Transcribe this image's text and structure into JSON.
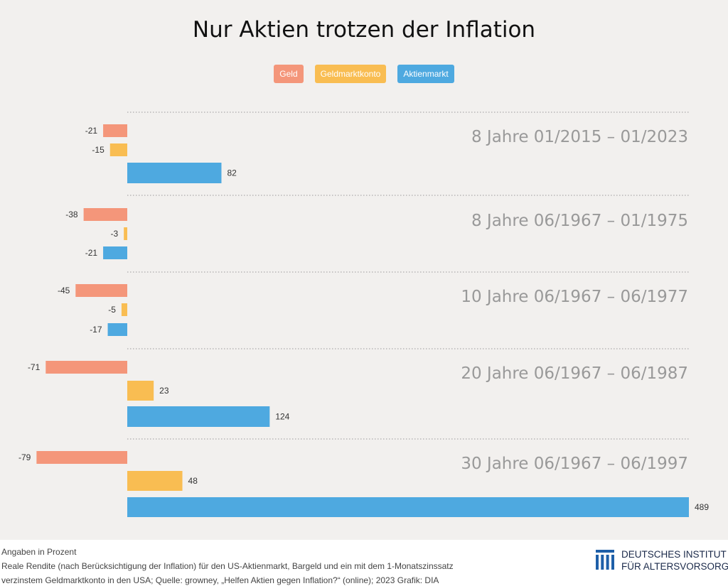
{
  "title": "Nur Aktien trotzen der Inflation",
  "legend": [
    {
      "label": "Geld",
      "color": "#f4967a"
    },
    {
      "label": "Geldmarktkonto",
      "color": "#f9bd52"
    },
    {
      "label": "Aktienmarkt",
      "color": "#4ea9e0"
    }
  ],
  "chart_data": {
    "type": "bar",
    "orientation": "horizontal",
    "unit": "Prozent",
    "series": [
      {
        "name": "Geld",
        "color": "#f4967a",
        "values": [
          -21,
          -38,
          -45,
          -71,
          -79
        ]
      },
      {
        "name": "Geldmarktkonto",
        "color": "#f9bd52",
        "values": [
          -15,
          -3,
          -5,
          23,
          48
        ]
      },
      {
        "name": "Aktienmarkt",
        "color": "#4ea9e0",
        "values": [
          82,
          -21,
          -17,
          124,
          489
        ]
      }
    ],
    "categories": [
      "8 Jahre  01/2015 – 01/2023",
      "8 Jahre  06/1967 – 01/1975",
      "10 Jahre  06/1967 – 06/1977",
      "20 Jahre  06/1967 – 06/1987",
      "30 Jahre  06/1967 – 06/1997"
    ],
    "grid": false,
    "legend_position": "top-center"
  },
  "footer": {
    "note1": "Angaben in Prozent",
    "note2": "Reale Rendite (nach Berücksichtigung der Inflation) für den US-Aktienmarkt, Bargeld und ein mit dem 1-Monatszinssatz",
    "note3": "verzinstem Geldmarktkonto in den USA;    Quelle: growney, „Helfen Aktien gegen Inflation?“ (online); 2023    Grafik: DIA",
    "logo_line1": "DEUTSCHES INSTITUT",
    "logo_line2": "FÜR ALTERSVORSORGE",
    "logo_color": "#1e5fa8"
  }
}
